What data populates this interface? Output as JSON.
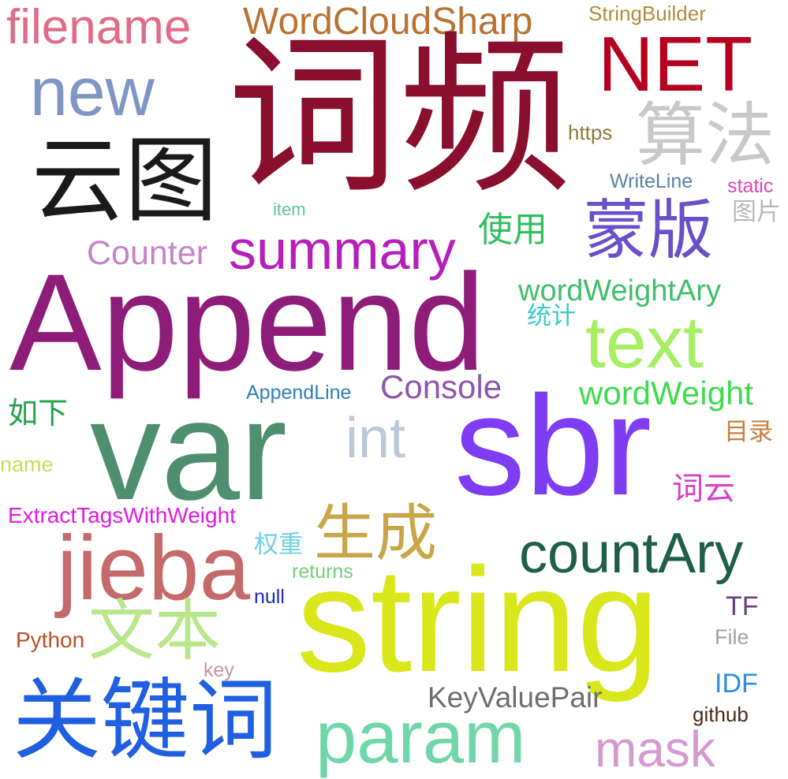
{
  "words": [
    {
      "text": "filename",
      "color": "#E06B8B"
    },
    {
      "text": "WordCloudSharp",
      "color": "#B87333"
    },
    {
      "text": "StringBuilder",
      "color": "#B08C3C"
    },
    {
      "text": "NET",
      "color": "#B5001E"
    },
    {
      "text": "new",
      "color": "#7F95C4"
    },
    {
      "text": "词频",
      "color": "#8A0F2F"
    },
    {
      "text": "云图",
      "color": "#1A1A1A"
    },
    {
      "text": "算法",
      "color": "#C8C8C8"
    },
    {
      "text": "https",
      "color": "#8B7A3A"
    },
    {
      "text": "WriteLine",
      "color": "#5A7FA6"
    },
    {
      "text": "static",
      "color": "#E040B0"
    },
    {
      "text": "item",
      "color": "#5FC59A"
    },
    {
      "text": "图片",
      "color": "#B8B8B8"
    },
    {
      "text": "蒙版",
      "color": "#6A4FC8"
    },
    {
      "text": "Counter",
      "color": "#C583C9"
    },
    {
      "text": "summary",
      "color": "#B61FBA"
    },
    {
      "text": "使用",
      "color": "#2FBF5A"
    },
    {
      "text": "Append",
      "color": "#8E1D7A"
    },
    {
      "text": "wordWeightAry",
      "color": "#3FBF6A"
    },
    {
      "text": "统计",
      "color": "#3CC9C9"
    },
    {
      "text": "text",
      "color": "#A6EE63"
    },
    {
      "text": "Console",
      "color": "#8E56AE"
    },
    {
      "text": "AppendLine",
      "color": "#2E7FB5"
    },
    {
      "text": "wordWeight",
      "color": "#3EDB4E"
    },
    {
      "text": "如下",
      "color": "#23A24A"
    },
    {
      "text": "var",
      "color": "#4D8F6F"
    },
    {
      "text": "int",
      "color": "#BCC7D8"
    },
    {
      "text": "sbr",
      "color": "#7E3CF3"
    },
    {
      "text": "目录",
      "color": "#C87E3E"
    },
    {
      "text": "name",
      "color": "#C5DE58"
    },
    {
      "text": "词云",
      "color": "#D640C9"
    },
    {
      "text": "ExtractTagsWithWeight",
      "color": "#E01AE0"
    },
    {
      "text": "生成",
      "color": "#C8A546"
    },
    {
      "text": "jieba",
      "color": "#C56A6A"
    },
    {
      "text": "countAry",
      "color": "#1E5E4A"
    },
    {
      "text": "权重",
      "color": "#6FD0E0"
    },
    {
      "text": "returns",
      "color": "#6FD07A"
    },
    {
      "text": "null",
      "color": "#1A2BB0"
    },
    {
      "text": "string",
      "color": "#D9E61A"
    },
    {
      "text": "文本",
      "color": "#B8E68A"
    },
    {
      "text": "TF",
      "color": "#6A3F7A"
    },
    {
      "text": "Python",
      "color": "#B5502A"
    },
    {
      "text": "File",
      "color": "#A0A0A0"
    },
    {
      "text": "key",
      "color": "#C890A8"
    },
    {
      "text": "IDF",
      "color": "#2A8FE0"
    },
    {
      "text": "关键词",
      "color": "#1F5FE0"
    },
    {
      "text": "KeyValuePair",
      "color": "#6E6E6E"
    },
    {
      "text": "github",
      "color": "#4A2A1A"
    },
    {
      "text": "param",
      "color": "#6ED6A8"
    },
    {
      "text": "mask",
      "color": "#D49ACF"
    }
  ]
}
